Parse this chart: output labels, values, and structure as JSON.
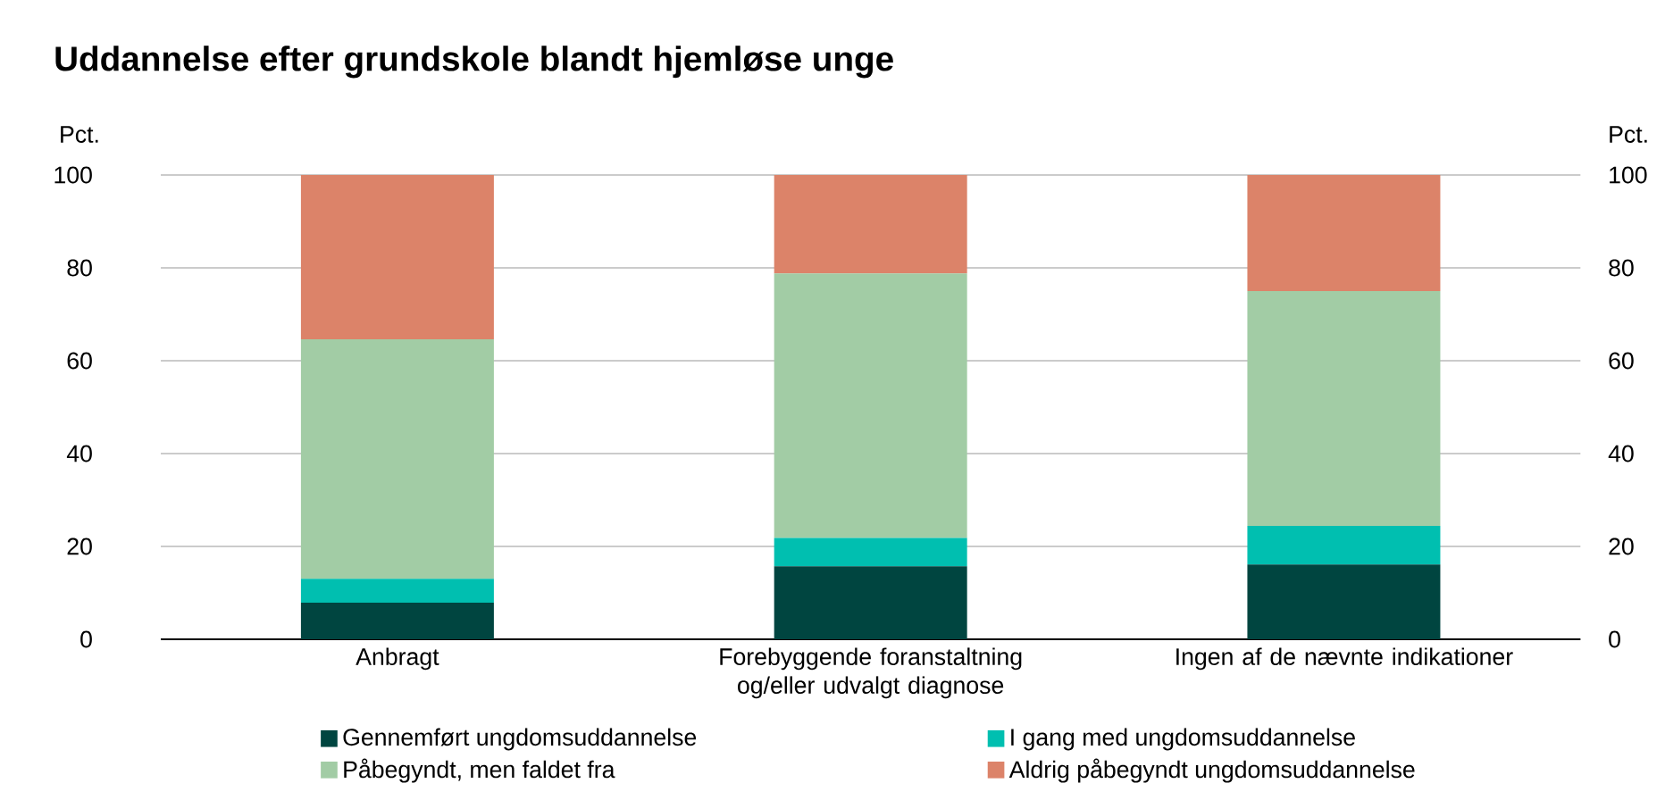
{
  "chart_data": {
    "type": "bar",
    "stacked": true,
    "title": "Uddannelse efter grundskole blandt hjemløse unge",
    "ylabel": "Pct.",
    "y2label": "Pct.",
    "categories": [
      "Anbragt",
      "Forebyggende foranstaltning og/eller udvalgt diagnose",
      "Ingen af de nævnte indikationer"
    ],
    "series": [
      {
        "name": "Gennemført ungdomsuddannelse",
        "color": "#004540",
        "values": [
          7.9,
          15.7,
          16.1
        ]
      },
      {
        "name": "I gang med ungdomsuddannelse",
        "color": "#00bfb0",
        "values": [
          5.1,
          6.1,
          8.3
        ]
      },
      {
        "name": "Påbegyndt, men faldet fra",
        "color": "#a2cca5",
        "values": [
          51.6,
          57.0,
          50.6
        ]
      },
      {
        "name": "Aldrig påbegyndt ungdomsuddannelse",
        "color": "#dc8369",
        "values": [
          35.4,
          21.2,
          25.0
        ]
      }
    ],
    "ylim": [
      0,
      100
    ],
    "yticks": [
      0,
      20,
      40,
      60,
      80,
      100
    ],
    "y2lim": [
      0,
      100
    ],
    "y2ticks": [
      0,
      20,
      40,
      60,
      80,
      100
    ],
    "grid": "y",
    "legend": "bottom"
  }
}
